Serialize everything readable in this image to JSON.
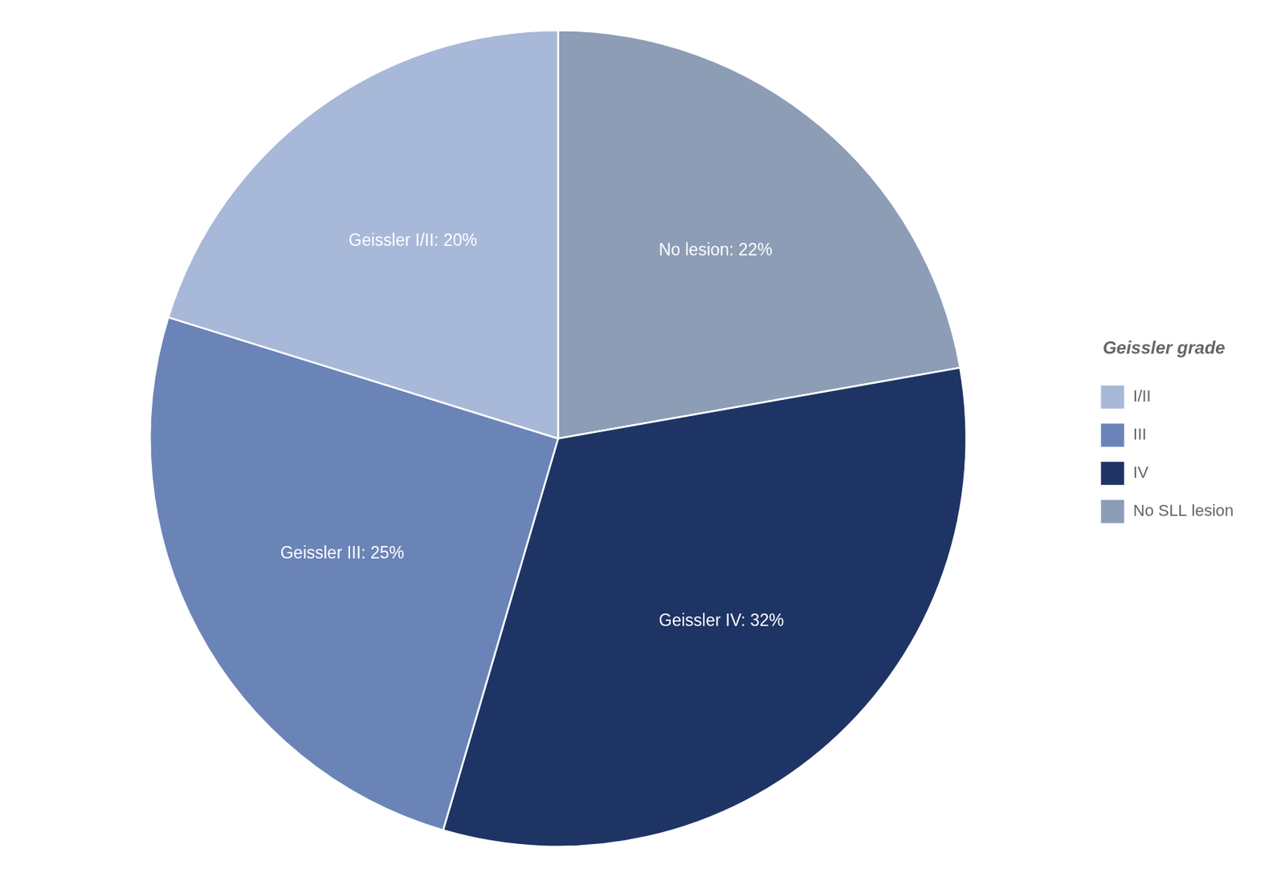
{
  "chart_data": {
    "type": "pie",
    "categories": [
      "No SLL lesion",
      "IV",
      "III",
      "I/II"
    ],
    "values": [
      22,
      32,
      25,
      20
    ],
    "value_labels": [
      "No lesion: 22%",
      "Geissler IV: 32%",
      "Geissler III: 25%",
      "Geissler I/II: 20%"
    ],
    "colors": [
      "#8c9db5",
      "#1e3464",
      "#6b84b8",
      "#a8b8d8"
    ],
    "data_labels": true,
    "legend": "right",
    "legend_title": "Geissler grade",
    "legend_order": [
      "I/II",
      "III",
      "IV",
      "No SLL lesion"
    ]
  }
}
